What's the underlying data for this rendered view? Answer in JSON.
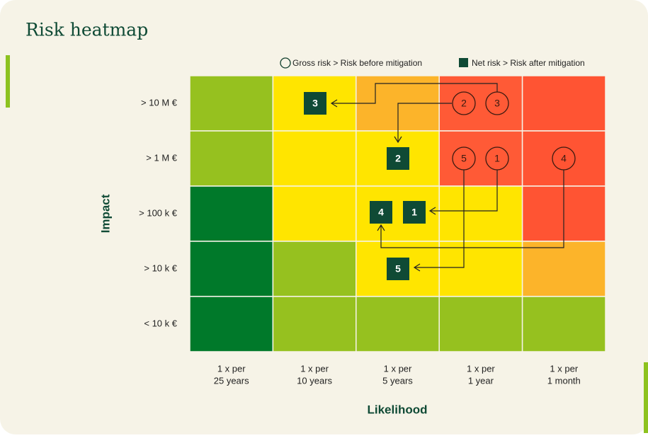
{
  "header": {
    "title": "Risk heatmap"
  },
  "legend": {
    "gross": "Gross risk > Risk before mitigation",
    "net": "Net risk > Risk after mitigation"
  },
  "axes": {
    "y_title": "Impact",
    "x_title": "Likelihood"
  },
  "rows": [
    "> 10 M €",
    "> 1 M €",
    "> 100 k €",
    "> 10 k €",
    "< 10 k €"
  ],
  "columns": [
    [
      "1 x per",
      "25 years"
    ],
    [
      "1 x per",
      "10 years"
    ],
    [
      "1 x per",
      "5 years"
    ],
    [
      "1 x per",
      "1 year"
    ],
    [
      "1 x per",
      "1 month"
    ]
  ],
  "cells": [
    [
      "#96c11f",
      "#ffe500",
      "#fcb42a",
      "#ff5a36",
      "#ff5433"
    ],
    [
      "#96c11f",
      "#ffe500",
      "#ffe500",
      "#ff5a36",
      "#ff5433"
    ],
    [
      "#00792a",
      "#ffe500",
      "#ffe500",
      "#ffe500",
      "#ff5433"
    ],
    [
      "#00792a",
      "#96c11f",
      "#ffe500",
      "#ffe500",
      "#fcb42a"
    ],
    [
      "#00792a",
      "#96c11f",
      "#96c11f",
      "#96c11f",
      "#96c11f"
    ]
  ],
  "gross": [
    "2",
    "3",
    "5",
    "1",
    "4"
  ],
  "net": [
    "3",
    "2",
    "4",
    "1",
    "5"
  ]
}
